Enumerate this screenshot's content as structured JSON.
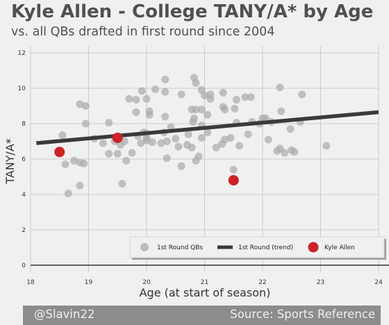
{
  "chart_data": {
    "type": "scatter",
    "title": "Kyle Allen - College TANY/A* by Age",
    "subtitle": "vs. all QBs drafted in first round since 2004",
    "xlabel": "Age (at start of season)",
    "ylabel": "TANY/A*",
    "xlim": [
      18,
      24
    ],
    "ylim": [
      -0.4,
      12.4
    ],
    "x_ticks": [
      18,
      19,
      20,
      21,
      22,
      23,
      24
    ],
    "y_ticks": [
      0,
      2,
      4,
      6,
      8,
      10,
      12
    ],
    "grid": true,
    "legend_position": "bottom-right",
    "series": [
      {
        "name": "1st Round QBs",
        "color": "#a9a9a9",
        "points": [
          [
            18.55,
            7.35
          ],
          [
            18.6,
            5.7
          ],
          [
            18.65,
            4.05
          ],
          [
            18.75,
            5.9
          ],
          [
            18.85,
            5.8
          ],
          [
            18.85,
            9.1
          ],
          [
            18.85,
            4.5
          ],
          [
            18.92,
            5.75
          ],
          [
            18.95,
            9.0
          ],
          [
            18.95,
            8.0
          ],
          [
            19.1,
            7.15
          ],
          [
            19.25,
            6.9
          ],
          [
            19.35,
            8.05
          ],
          [
            19.35,
            6.3
          ],
          [
            19.45,
            7.0
          ],
          [
            19.5,
            6.3
          ],
          [
            19.55,
            6.8
          ],
          [
            19.58,
            4.6
          ],
          [
            19.62,
            7.0
          ],
          [
            19.65,
            5.9
          ],
          [
            19.7,
            9.4
          ],
          [
            19.75,
            6.35
          ],
          [
            19.82,
            9.35
          ],
          [
            19.82,
            8.65
          ],
          [
            19.85,
            7.3
          ],
          [
            19.9,
            6.9
          ],
          [
            19.92,
            9.85
          ],
          [
            19.95,
            7.5
          ],
          [
            20.0,
            7.45
          ],
          [
            20.0,
            9.4
          ],
          [
            20.0,
            7.05
          ],
          [
            20.0,
            7.2
          ],
          [
            20.05,
            8.5
          ],
          [
            20.05,
            8.7
          ],
          [
            20.1,
            6.95
          ],
          [
            20.15,
            9.95
          ],
          [
            20.25,
            6.9
          ],
          [
            20.3,
            7.5
          ],
          [
            20.32,
            8.4
          ],
          [
            20.32,
            10.5
          ],
          [
            20.32,
            9.8
          ],
          [
            20.35,
            6.05
          ],
          [
            20.35,
            7.0
          ],
          [
            20.42,
            7.8
          ],
          [
            20.5,
            7.15
          ],
          [
            20.55,
            6.7
          ],
          [
            20.6,
            5.6
          ],
          [
            20.6,
            9.65
          ],
          [
            20.7,
            6.8
          ],
          [
            20.72,
            7.4
          ],
          [
            20.78,
            8.8
          ],
          [
            20.78,
            6.65
          ],
          [
            20.8,
            8.1
          ],
          [
            20.82,
            10.6
          ],
          [
            20.82,
            8.3
          ],
          [
            20.85,
            10.3
          ],
          [
            20.85,
            5.9
          ],
          [
            20.85,
            8.8
          ],
          [
            20.9,
            6.15
          ],
          [
            20.95,
            7.2
          ],
          [
            20.95,
            7.9
          ],
          [
            20.95,
            8.8
          ],
          [
            20.95,
            9.9
          ],
          [
            21.0,
            9.6
          ],
          [
            21.05,
            8.5
          ],
          [
            21.05,
            7.5
          ],
          [
            21.1,
            9.65
          ],
          [
            21.1,
            9.4
          ],
          [
            21.2,
            6.65
          ],
          [
            21.3,
            6.85
          ],
          [
            21.32,
            9.75
          ],
          [
            21.32,
            8.95
          ],
          [
            21.35,
            8.8
          ],
          [
            21.35,
            7.1
          ],
          [
            21.45,
            7.2
          ],
          [
            21.5,
            5.4
          ],
          [
            21.52,
            8.85
          ],
          [
            21.55,
            9.35
          ],
          [
            21.55,
            8.05
          ],
          [
            21.6,
            6.75
          ],
          [
            21.7,
            9.5
          ],
          [
            21.75,
            7.4
          ],
          [
            21.8,
            9.5
          ],
          [
            21.82,
            8.1
          ],
          [
            21.95,
            8.0
          ],
          [
            22.0,
            8.3
          ],
          [
            22.05,
            8.3
          ],
          [
            22.1,
            7.1
          ],
          [
            22.15,
            8.1
          ],
          [
            22.25,
            6.45
          ],
          [
            22.3,
            6.6
          ],
          [
            22.3,
            10.05
          ],
          [
            22.32,
            8.7
          ],
          [
            22.38,
            6.35
          ],
          [
            22.48,
            7.7
          ],
          [
            22.5,
            6.5
          ],
          [
            22.55,
            6.4
          ],
          [
            22.65,
            8.1
          ],
          [
            22.68,
            9.65
          ],
          [
            23.1,
            6.75
          ]
        ]
      },
      {
        "name": "1st Round (trend)",
        "color": "#3a3a3a",
        "x": [
          18.1,
          24.0
        ],
        "y": [
          6.9,
          8.65
        ]
      },
      {
        "name": "Kyle Allen",
        "color": "#cc2229",
        "points": [
          [
            18.5,
            6.4
          ],
          [
            19.5,
            7.2
          ],
          [
            21.5,
            4.8
          ]
        ]
      }
    ]
  },
  "footer": {
    "left": "@Slavin22",
    "right": "Source: Sports Reference"
  }
}
